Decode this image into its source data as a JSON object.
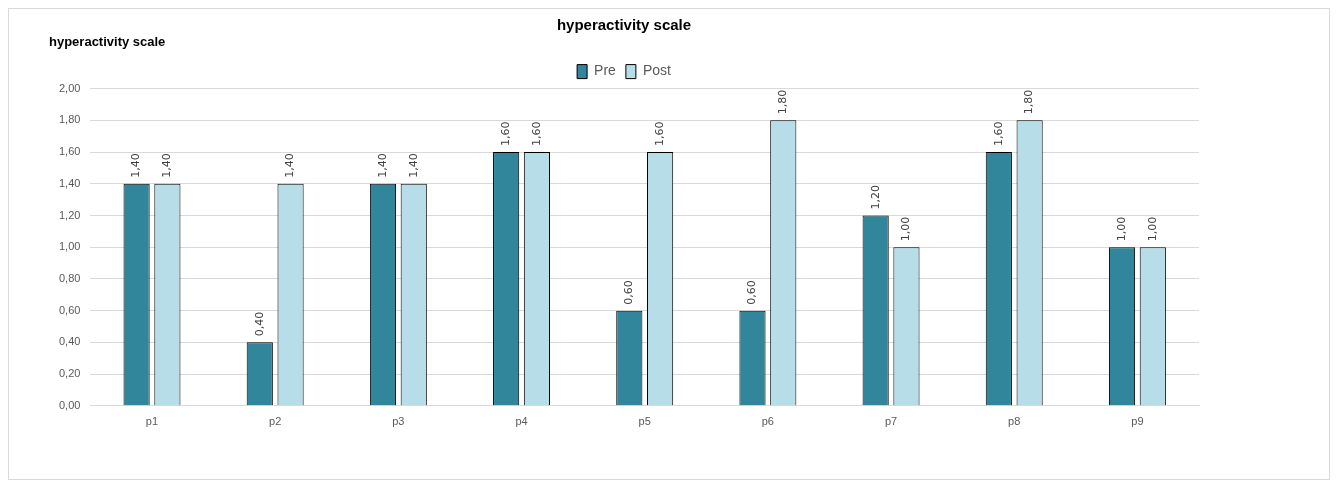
{
  "chart_data": {
    "type": "bar",
    "title": "hyperactivity scale",
    "subtitle": "hyperactivity scale",
    "categories": [
      "p1",
      "p2",
      "p3",
      "p4",
      "p5",
      "p6",
      "p7",
      "p8",
      "p9"
    ],
    "series": [
      {
        "name": "Pre",
        "color": "#31869b",
        "values": [
          1.4,
          0.4,
          1.4,
          1.6,
          0.6,
          0.6,
          1.2,
          1.6,
          1.0
        ],
        "value_labels": [
          "1,40",
          "0,40",
          "1,40",
          "1,60",
          "0,60",
          "0,60",
          "1,20",
          "1,60",
          "1,00"
        ]
      },
      {
        "name": "Post",
        "color": "#b7dee8",
        "values": [
          1.4,
          1.4,
          1.4,
          1.6,
          1.6,
          1.8,
          1.0,
          1.8,
          1.0
        ],
        "value_labels": [
          "1,40",
          "1,40",
          "1,40",
          "1,60",
          "1,60",
          "1,80",
          "1,00",
          "1,80",
          "1,00"
        ]
      }
    ],
    "ylim": [
      0,
      2
    ],
    "yticks": [
      {
        "value": 0,
        "label": "0,00"
      },
      {
        "value": 0.2,
        "label": "0,20"
      },
      {
        "value": 0.4,
        "label": "0,40"
      },
      {
        "value": 0.6,
        "label": "0,60"
      },
      {
        "value": 0.8,
        "label": "0,80"
      },
      {
        "value": 1,
        "label": "1,00"
      },
      {
        "value": 1.2,
        "label": "1,20"
      },
      {
        "value": 1.4,
        "label": "1,40"
      },
      {
        "value": 1.6,
        "label": "1,60"
      },
      {
        "value": 1.8,
        "label": "1,80"
      },
      {
        "value": 2,
        "label": "2,00"
      }
    ],
    "grid": "y",
    "legend": "top"
  }
}
